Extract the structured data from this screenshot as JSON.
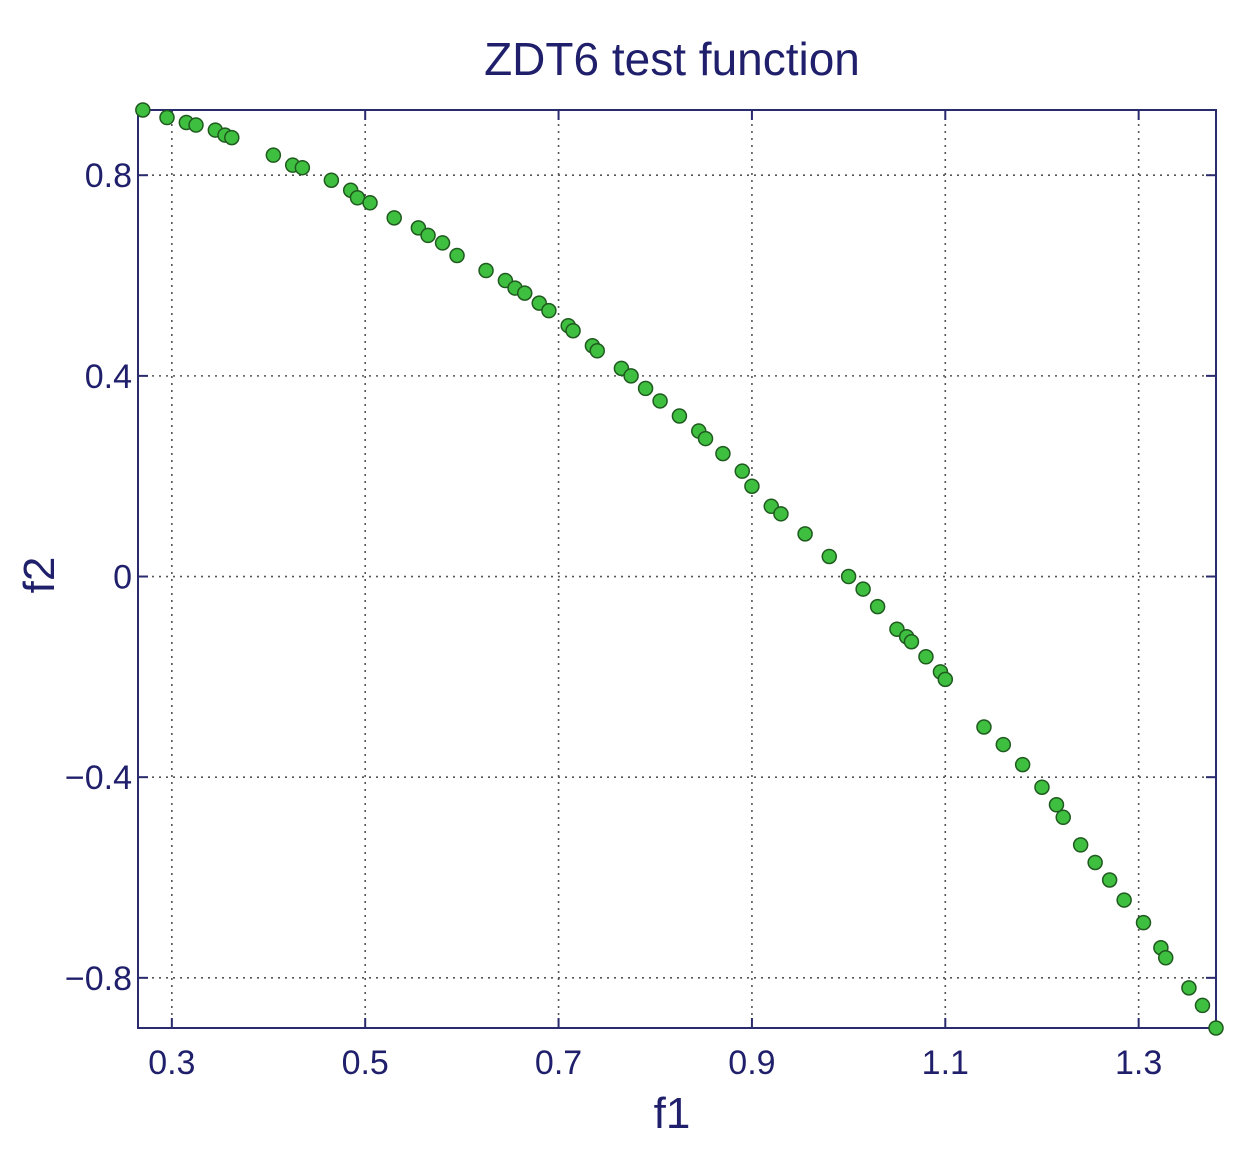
{
  "chart_data": {
    "type": "scatter",
    "title": "ZDT6 test function",
    "xlabel": "f1",
    "ylabel": "f2",
    "xlim": [
      0.265,
      1.38
    ],
    "ylim": [
      -0.9,
      0.93
    ],
    "xticks": [
      0.3,
      0.5,
      0.7,
      0.9,
      1.1,
      1.3
    ],
    "xtick_labels": [
      "0.3",
      "0.5",
      "0.7",
      "0.9",
      "1.1",
      "1.3"
    ],
    "yticks": [
      0.8,
      0.4,
      0,
      -0.4,
      -0.8
    ],
    "ytick_labels": [
      "0.8",
      "0.4",
      "0",
      "−0.4",
      "−0.8"
    ],
    "grid": true,
    "marker_color": "#3fbf3f",
    "series": [
      {
        "x": [
          0.27,
          0.295,
          0.315,
          0.325,
          0.345,
          0.355,
          0.362,
          0.405,
          0.425,
          0.435,
          0.465,
          0.485,
          0.492,
          0.505,
          0.53,
          0.555,
          0.565,
          0.58,
          0.595,
          0.625,
          0.645,
          0.655,
          0.665,
          0.68,
          0.69,
          0.71,
          0.715,
          0.735,
          0.74,
          0.765,
          0.775,
          0.79,
          0.805,
          0.825,
          0.845,
          0.852,
          0.87,
          0.89,
          0.9,
          0.92,
          0.93,
          0.955,
          0.98,
          1.0,
          1.015,
          1.03,
          1.05,
          1.06,
          1.065,
          1.08,
          1.095,
          1.1,
          1.14,
          1.16,
          1.18,
          1.2,
          1.215,
          1.222,
          1.24,
          1.255,
          1.27,
          1.285,
          1.305,
          1.323,
          1.328,
          1.352,
          1.366,
          1.38
        ],
        "y": [
          0.93,
          0.915,
          0.905,
          0.9,
          0.89,
          0.88,
          0.875,
          0.84,
          0.82,
          0.815,
          0.79,
          0.77,
          0.755,
          0.745,
          0.715,
          0.695,
          0.68,
          0.665,
          0.64,
          0.61,
          0.59,
          0.575,
          0.565,
          0.545,
          0.53,
          0.5,
          0.49,
          0.46,
          0.45,
          0.415,
          0.4,
          0.375,
          0.35,
          0.32,
          0.29,
          0.275,
          0.245,
          0.21,
          0.18,
          0.14,
          0.125,
          0.085,
          0.04,
          0.0,
          -0.025,
          -0.06,
          -0.105,
          -0.12,
          -0.13,
          -0.16,
          -0.19,
          -0.205,
          -0.3,
          -0.335,
          -0.375,
          -0.42,
          -0.455,
          -0.48,
          -0.535,
          -0.57,
          -0.605,
          -0.645,
          -0.69,
          -0.74,
          -0.76,
          -0.82,
          -0.855,
          -0.9
        ]
      }
    ]
  }
}
